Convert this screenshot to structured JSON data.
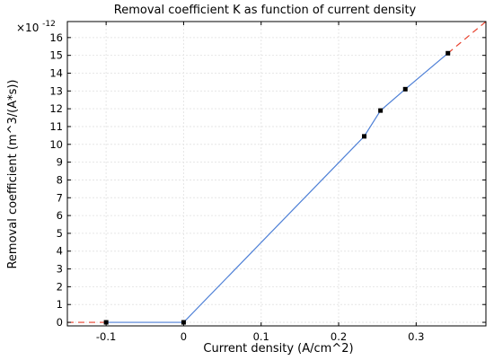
{
  "chart_data": {
    "type": "line",
    "title": "Removal coefficient K as function of current density",
    "xlabel": "Current density (A/cm^2)",
    "ylabel": "Removal coefficient (m^3/(A*s))",
    "y_multiplier_label": "×10",
    "y_multiplier_exponent": "-12",
    "xlim": [
      -0.15,
      0.39
    ],
    "ylim": [
      -0.2,
      16.9
    ],
    "x_ticks": [
      {
        "value": -0.1,
        "label": "-0.1"
      },
      {
        "value": 0,
        "label": "0"
      },
      {
        "value": 0.1,
        "label": "0.1"
      },
      {
        "value": 0.2,
        "label": "0.2"
      },
      {
        "value": 0.3,
        "label": "0.3"
      }
    ],
    "y_ticks": [
      {
        "value": 0,
        "label": "0"
      },
      {
        "value": 1,
        "label": "1"
      },
      {
        "value": 2,
        "label": "2"
      },
      {
        "value": 3,
        "label": "3"
      },
      {
        "value": 4,
        "label": "4"
      },
      {
        "value": 5,
        "label": "5"
      },
      {
        "value": 6,
        "label": "6"
      },
      {
        "value": 7,
        "label": "7"
      },
      {
        "value": 8,
        "label": "8"
      },
      {
        "value": 9,
        "label": "9"
      },
      {
        "value": 10,
        "label": "10"
      },
      {
        "value": 11,
        "label": "11"
      },
      {
        "value": 12,
        "label": "12"
      },
      {
        "value": 13,
        "label": "13"
      },
      {
        "value": 14,
        "label": "14"
      },
      {
        "value": 15,
        "label": "15"
      },
      {
        "value": 16,
        "label": "16"
      }
    ],
    "grid": true,
    "series": [
      {
        "style": "solid",
        "color": "#4d7fd6",
        "points": [
          {
            "x": -0.1,
            "y": 0.0
          },
          {
            "x": 0.0,
            "y": 0.0
          },
          {
            "x": 0.233,
            "y": 10.45
          },
          {
            "x": 0.254,
            "y": 11.9
          },
          {
            "x": 0.286,
            "y": 13.1
          },
          {
            "x": 0.341,
            "y": 15.12
          }
        ]
      },
      {
        "style": "dashed",
        "color": "#e8402c",
        "points": [
          {
            "x": -0.15,
            "y": 0.0
          },
          {
            "x": -0.1,
            "y": 0.0
          }
        ]
      },
      {
        "style": "dashed",
        "color": "#e8402c",
        "points": [
          {
            "x": 0.341,
            "y": 15.12
          },
          {
            "x": 0.39,
            "y": 16.9
          }
        ]
      }
    ],
    "markers": [
      {
        "x": -0.1,
        "y": 0.0
      },
      {
        "x": 0.0,
        "y": 0.0
      },
      {
        "x": 0.233,
        "y": 10.45
      },
      {
        "x": 0.254,
        "y": 11.9
      },
      {
        "x": 0.286,
        "y": 13.1
      },
      {
        "x": 0.341,
        "y": 15.12
      }
    ],
    "marker_color": "#000000"
  }
}
